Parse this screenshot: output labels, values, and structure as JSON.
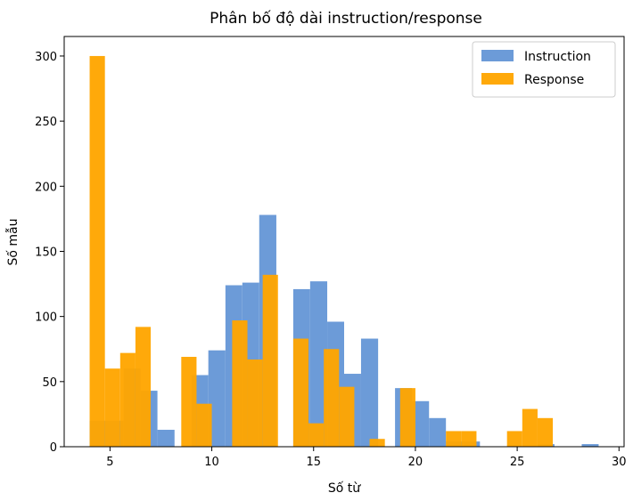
{
  "chart_data": {
    "type": "bar",
    "title": "Phân bố độ dài instruction/response",
    "xlabel": "Số từ",
    "ylabel": "Số mẫu",
    "xlim": [
      2.75,
      30.25
    ],
    "ylim": [
      0,
      315
    ],
    "xticks": [
      5,
      10,
      15,
      20,
      25,
      30
    ],
    "yticks": [
      0,
      50,
      100,
      150,
      200,
      250,
      300
    ],
    "legend_position": "top-right",
    "grid": false,
    "series": [
      {
        "name": "Instruction",
        "color": "#6c9bd8",
        "opacity": 1,
        "bins": [
          {
            "x0": 4.0,
            "x1": 4.83,
            "value": 20
          },
          {
            "x0": 4.83,
            "x1": 5.67,
            "value": 20
          },
          {
            "x0": 5.67,
            "x1": 6.5,
            "value": 60
          },
          {
            "x0": 6.5,
            "x1": 7.33,
            "value": 43
          },
          {
            "x0": 7.33,
            "x1": 8.17,
            "value": 13
          },
          {
            "x0": 9.0,
            "x1": 9.83,
            "value": 55
          },
          {
            "x0": 9.83,
            "x1": 10.67,
            "value": 74
          },
          {
            "x0": 10.67,
            "x1": 11.5,
            "value": 124
          },
          {
            "x0": 11.5,
            "x1": 12.33,
            "value": 126
          },
          {
            "x0": 12.33,
            "x1": 13.17,
            "value": 178
          },
          {
            "x0": 14.0,
            "x1": 14.83,
            "value": 121
          },
          {
            "x0": 14.83,
            "x1": 15.67,
            "value": 127
          },
          {
            "x0": 15.67,
            "x1": 16.5,
            "value": 96
          },
          {
            "x0": 16.5,
            "x1": 17.33,
            "value": 56
          },
          {
            "x0": 17.33,
            "x1": 18.17,
            "value": 83
          },
          {
            "x0": 19.0,
            "x1": 19.83,
            "value": 45
          },
          {
            "x0": 19.83,
            "x1": 20.67,
            "value": 35
          },
          {
            "x0": 20.67,
            "x1": 21.5,
            "value": 22
          },
          {
            "x0": 21.5,
            "x1": 22.33,
            "value": 4
          },
          {
            "x0": 22.33,
            "x1": 23.17,
            "value": 4
          },
          {
            "x0": 26.0,
            "x1": 26.83,
            "value": 2
          },
          {
            "x0": 28.17,
            "x1": 29.0,
            "value": 2
          }
        ]
      },
      {
        "name": "Response",
        "color": "#ffa500",
        "opacity": 0.96,
        "bins": [
          {
            "x0": 4.0,
            "x1": 4.75,
            "value": 300
          },
          {
            "x0": 4.75,
            "x1": 5.5,
            "value": 60
          },
          {
            "x0": 5.5,
            "x1": 6.25,
            "value": 72
          },
          {
            "x0": 6.25,
            "x1": 7.0,
            "value": 92
          },
          {
            "x0": 8.5,
            "x1": 9.25,
            "value": 69
          },
          {
            "x0": 9.25,
            "x1": 10.0,
            "value": 33
          },
          {
            "x0": 11.0,
            "x1": 11.75,
            "value": 97
          },
          {
            "x0": 11.75,
            "x1": 12.5,
            "value": 67
          },
          {
            "x0": 12.5,
            "x1": 13.25,
            "value": 132
          },
          {
            "x0": 14.0,
            "x1": 14.75,
            "value": 83
          },
          {
            "x0": 14.75,
            "x1": 15.5,
            "value": 18
          },
          {
            "x0": 15.5,
            "x1": 16.25,
            "value": 75
          },
          {
            "x0": 16.25,
            "x1": 17.0,
            "value": 46
          },
          {
            "x0": 17.75,
            "x1": 18.5,
            "value": 6
          },
          {
            "x0": 19.25,
            "x1": 20.0,
            "value": 45
          },
          {
            "x0": 21.5,
            "x1": 22.25,
            "value": 12
          },
          {
            "x0": 22.25,
            "x1": 23.0,
            "value": 12
          },
          {
            "x0": 24.5,
            "x1": 25.25,
            "value": 12
          },
          {
            "x0": 25.25,
            "x1": 26.0,
            "value": 29
          },
          {
            "x0": 26.0,
            "x1": 26.75,
            "value": 22
          }
        ]
      }
    ]
  }
}
